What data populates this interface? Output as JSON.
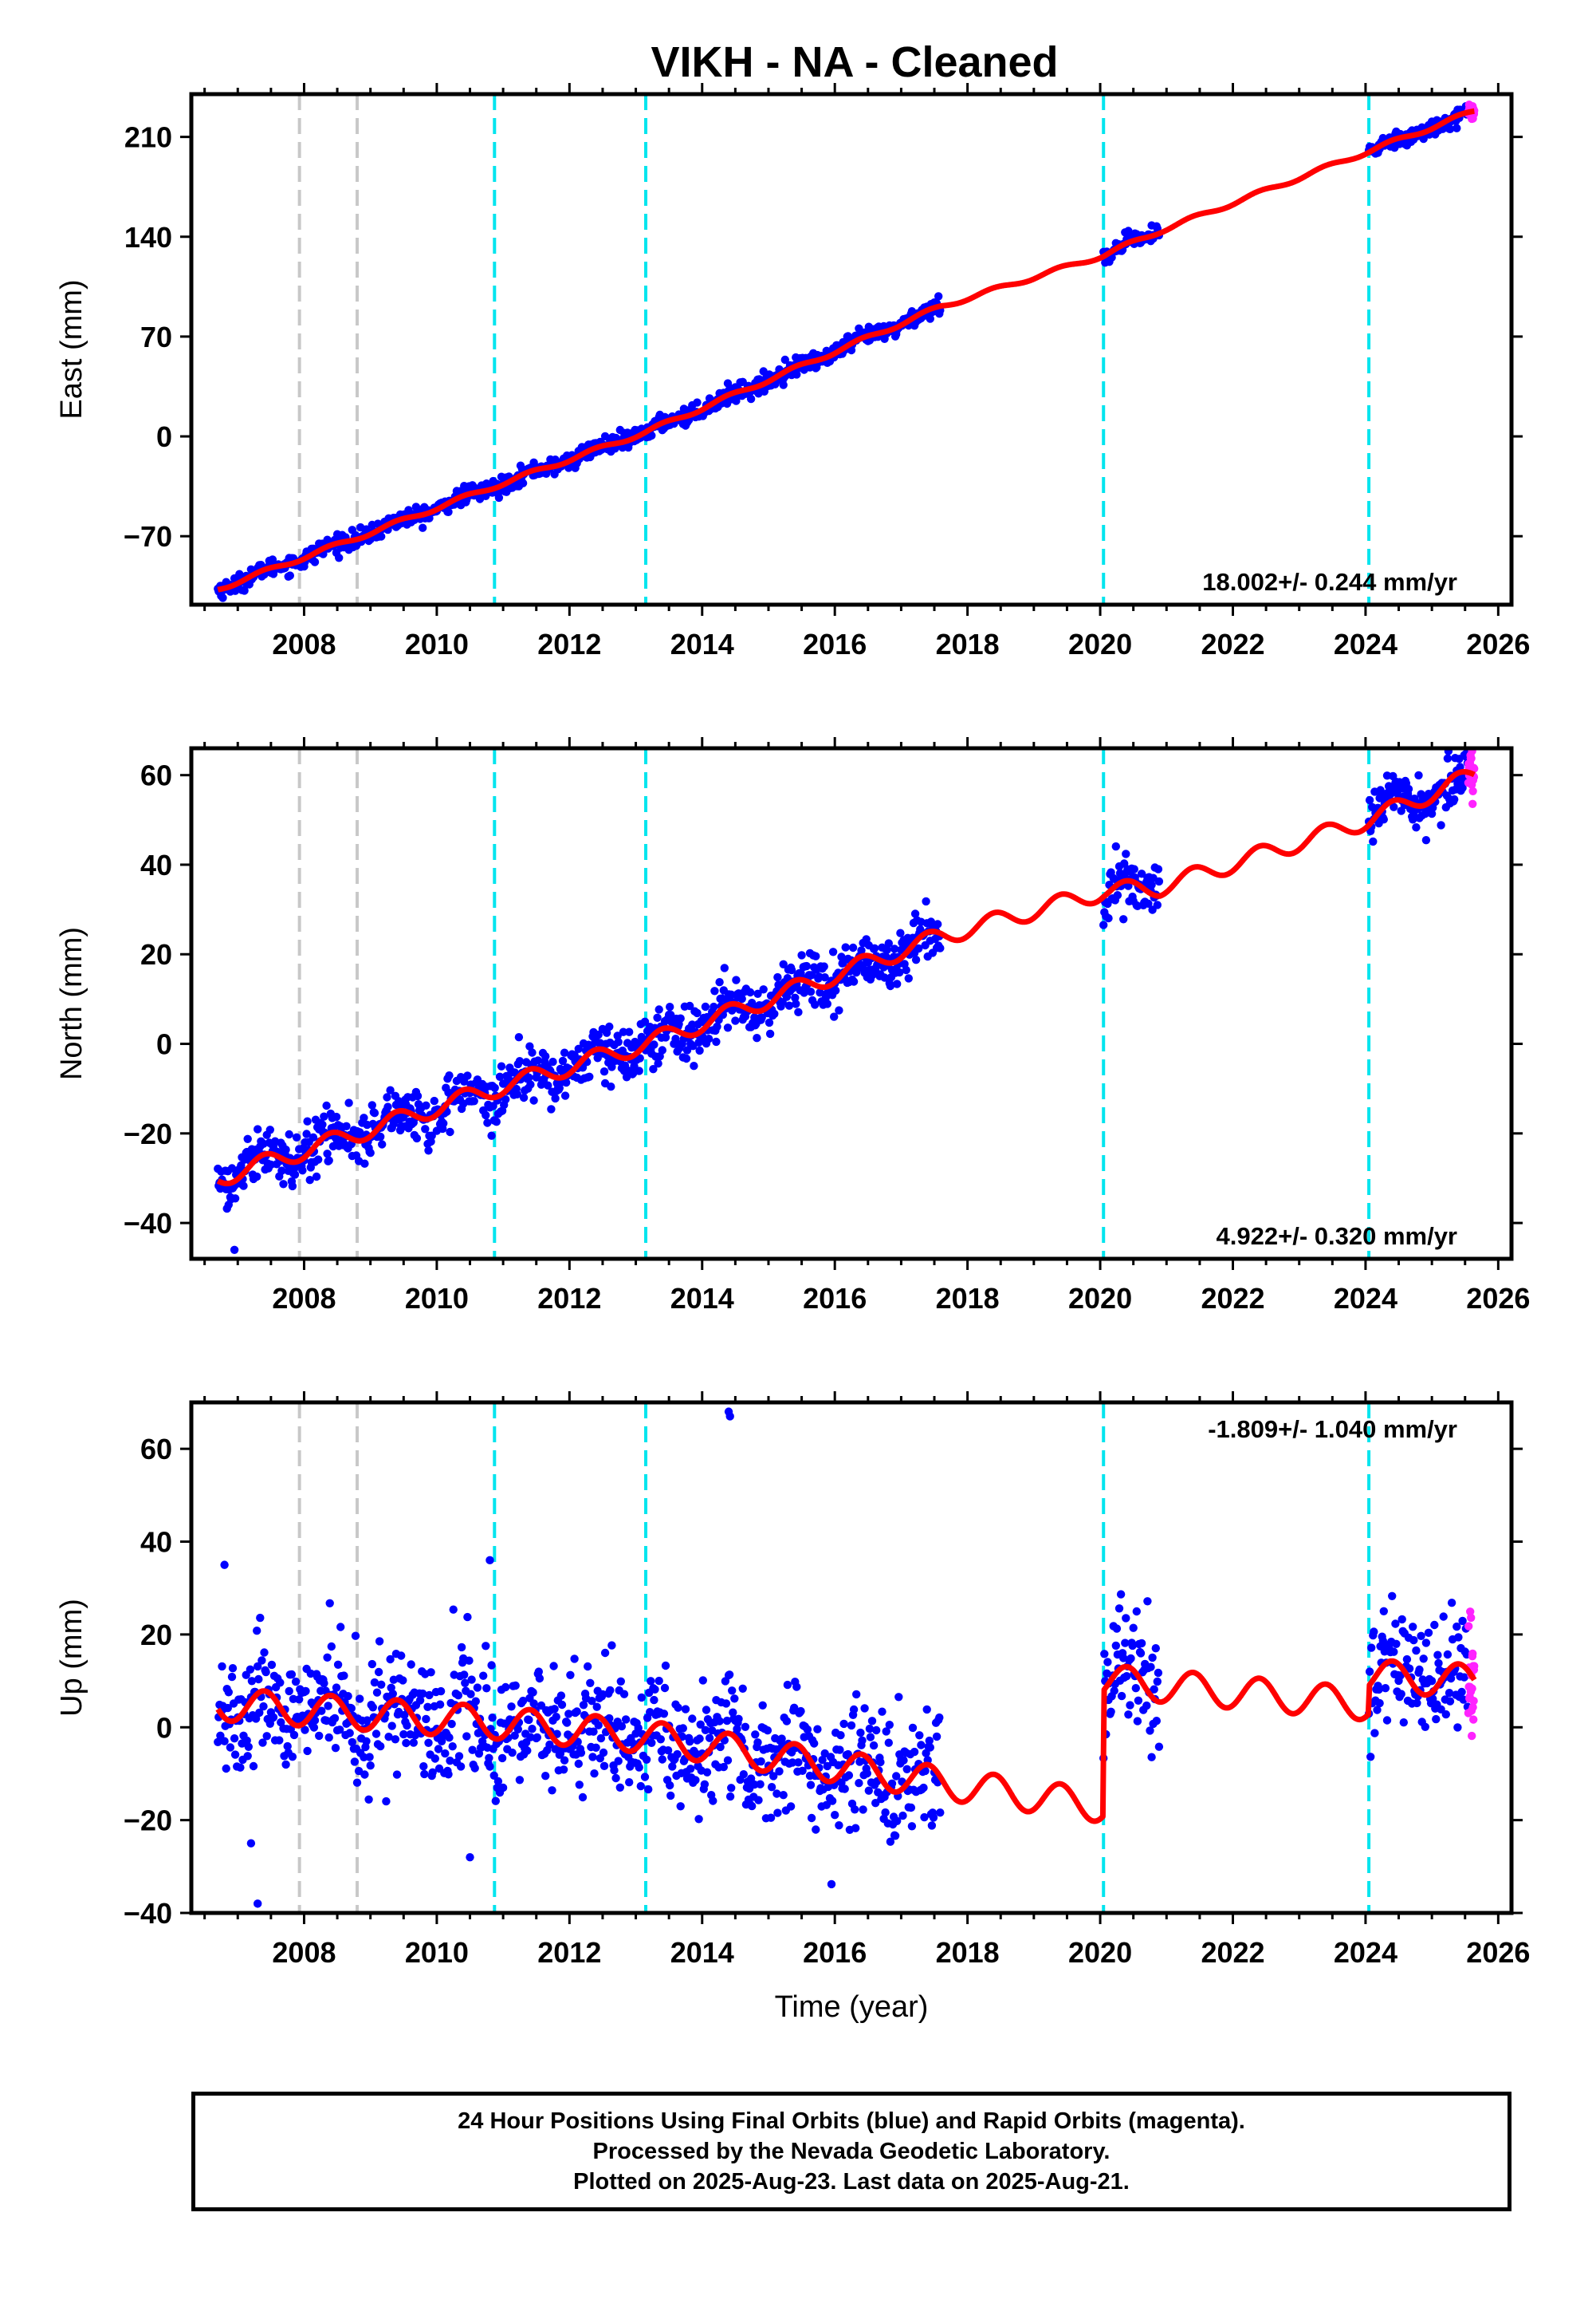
{
  "title": "VIKH  - NA - Cleaned",
  "colors": {
    "final_orbits": "#0000ff",
    "rapid_orbits": "#ff22ff",
    "model": "#ff0000",
    "antenna_change": "#00e5ee",
    "other_event": "#c8c8c8"
  },
  "footer": {
    "line1": "24 Hour Positions Using Final Orbits (blue) and Rapid Orbits (magenta).",
    "line2": "Processed by the Nevada Geodetic Laboratory.",
    "line3": "Plotted on 2025-Aug-23. Last data on 2025-Aug-21."
  },
  "chart_data": [
    {
      "type": "scatter",
      "panel": "East",
      "ylabel": "East (mm)",
      "xlabel": "",
      "xlim": [
        2006.3,
        2026.2
      ],
      "ylim": [
        -118,
        240
      ],
      "xticks": [
        2008,
        2010,
        2012,
        2014,
        2016,
        2018,
        2020,
        2022,
        2024,
        2026
      ],
      "yticks": [
        -70,
        0,
        70,
        140,
        210
      ],
      "ytick_labels": [
        "−70",
        "0",
        "70",
        "140",
        "210"
      ],
      "rate_text": "18.002+/- 0.244 mm/yr",
      "rate_position": "bottom-right",
      "grey_event_lines": [
        2007.93,
        2008.8
      ],
      "cyan_event_lines": [
        2010.87,
        2013.15,
        2020.05,
        2024.05
      ],
      "data_segments": [
        [
          2006.7,
          2017.6
        ],
        [
          2020.05,
          2020.9
        ],
        [
          2024.05,
          2025.55
        ]
      ],
      "rapid_segment": [
        2025.55,
        2025.64
      ],
      "model": {
        "x": [
          2006.7,
          2008.8,
          2010.87,
          2013.15,
          2017.6,
          2020.05,
          2020.9,
          2024.05,
          2025.64
        ],
        "y": [
          -107,
          -71,
          -35,
          3,
          91,
          127,
          144,
          200,
          228
        ]
      },
      "seasonal_amplitude": 1.5,
      "scatter_noise": 3,
      "outliers": []
    },
    {
      "type": "scatter",
      "panel": "North",
      "ylabel": "North (mm)",
      "xlabel": "",
      "xlim": [
        2006.3,
        2026.2
      ],
      "ylim": [
        -48,
        66
      ],
      "xticks": [
        2008,
        2010,
        2012,
        2014,
        2016,
        2018,
        2020,
        2022,
        2024,
        2026
      ],
      "yticks": [
        -40,
        -20,
        0,
        20,
        40,
        60
      ],
      "ytick_labels": [
        "−40",
        "−20",
        "0",
        "20",
        "40",
        "60"
      ],
      "rate_text": "4.922+/- 0.320 mm/yr",
      "rate_position": "bottom-right",
      "grey_event_lines": [
        2007.93,
        2008.8
      ],
      "cyan_event_lines": [
        2010.87,
        2013.15,
        2020.05,
        2024.05
      ],
      "data_segments": [
        [
          2006.7,
          2017.6
        ],
        [
          2020.05,
          2020.9
        ],
        [
          2024.05,
          2025.55
        ]
      ],
      "rapid_segment": [
        2025.55,
        2025.64
      ],
      "model": {
        "x": [
          2006.7,
          2008.8,
          2010.87,
          2013.15,
          2017.6,
          2020.05,
          2020.9,
          2024.05,
          2025.64
        ],
        "y": [
          -30,
          -20,
          -10,
          0,
          24,
          34,
          35,
          50,
          60
        ]
      },
      "seasonal_amplitude": 2,
      "scatter_noise": 3,
      "outliers": [
        [
          2006.95,
          -46
        ]
      ]
    },
    {
      "type": "scatter",
      "panel": "Up",
      "ylabel": "Up (mm)",
      "xlabel": "Time (year)",
      "xlim": [
        2006.3,
        2026.2
      ],
      "ylim": [
        -40,
        70
      ],
      "xticks": [
        2008,
        2010,
        2012,
        2014,
        2016,
        2018,
        2020,
        2022,
        2024,
        2026
      ],
      "yticks": [
        -40,
        -20,
        0,
        20,
        40,
        60
      ],
      "ytick_labels": [
        "−40",
        "−20",
        "0",
        "20",
        "40",
        "60"
      ],
      "rate_text": "-1.809+/- 1.040 mm/yr",
      "rate_position": "top-right",
      "grey_event_lines": [
        2007.93,
        2008.8
      ],
      "cyan_event_lines": [
        2010.87,
        2013.15,
        2020.05,
        2024.05
      ],
      "data_segments": [
        [
          2006.7,
          2017.6
        ],
        [
          2020.05,
          2020.9
        ],
        [
          2024.05,
          2025.55
        ]
      ],
      "rapid_segment": [
        2025.55,
        2025.64
      ],
      "model": {
        "x": [
          2006.7,
          2010.87,
          2013.15,
          2017.6,
          2020.04,
          2020.06,
          2024.04,
          2024.06,
          2025.64
        ],
        "y": [
          5,
          1,
          -2,
          -12,
          -17,
          10,
          5,
          11,
          10
        ]
      },
      "seasonal_amplitude": 3.5,
      "scatter_noise": 6.5,
      "outliers": [
        [
          2007.3,
          -38
        ],
        [
          2010.5,
          -28
        ],
        [
          2007.2,
          -25
        ],
        [
          2014.4,
          68
        ],
        [
          2014.42,
          67
        ],
        [
          2010.8,
          36
        ],
        [
          2006.8,
          35
        ]
      ]
    }
  ]
}
